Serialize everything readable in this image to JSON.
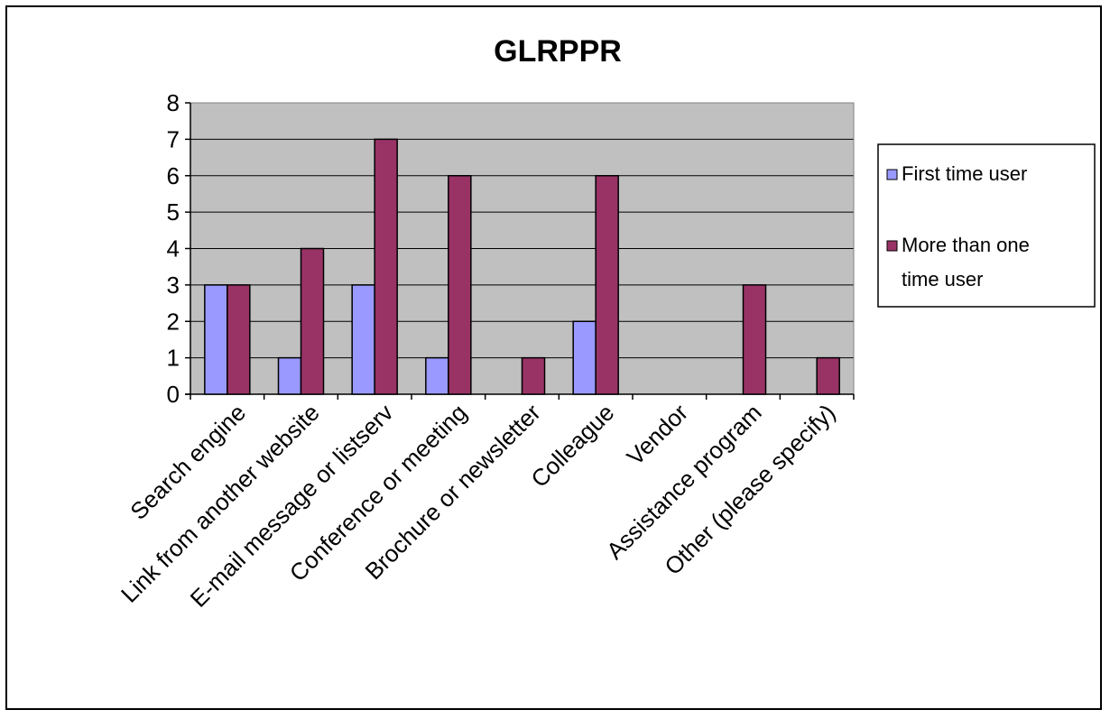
{
  "chart_data": {
    "type": "bar",
    "title": "GLRPPR",
    "xlabel": "",
    "ylabel": "",
    "ylim": [
      0,
      8
    ],
    "yticks": [
      0,
      1,
      2,
      3,
      4,
      5,
      6,
      7,
      8
    ],
    "grid": true,
    "legend_position": "right",
    "categories": [
      "Search engine",
      "Link from another website",
      "E-mail message or listserv",
      "Conference or meeting",
      "Brochure or newsletter",
      "Colleague",
      "Vendor",
      "Assistance program",
      "Other (please specify)"
    ],
    "series": [
      {
        "name": "First time user",
        "color": "#9999ff",
        "values": [
          3,
          1,
          3,
          1,
          0,
          2,
          0,
          0,
          0
        ]
      },
      {
        "name": "More than one time user",
        "color": "#993366",
        "values": [
          3,
          4,
          7,
          6,
          1,
          6,
          0,
          3,
          1
        ]
      }
    ],
    "legend_lines": [
      [
        "First time user"
      ],
      [
        "More than one",
        "time user"
      ]
    ],
    "colors": {
      "plot_background": "#c0c0c0",
      "gridline": "#000000"
    }
  }
}
